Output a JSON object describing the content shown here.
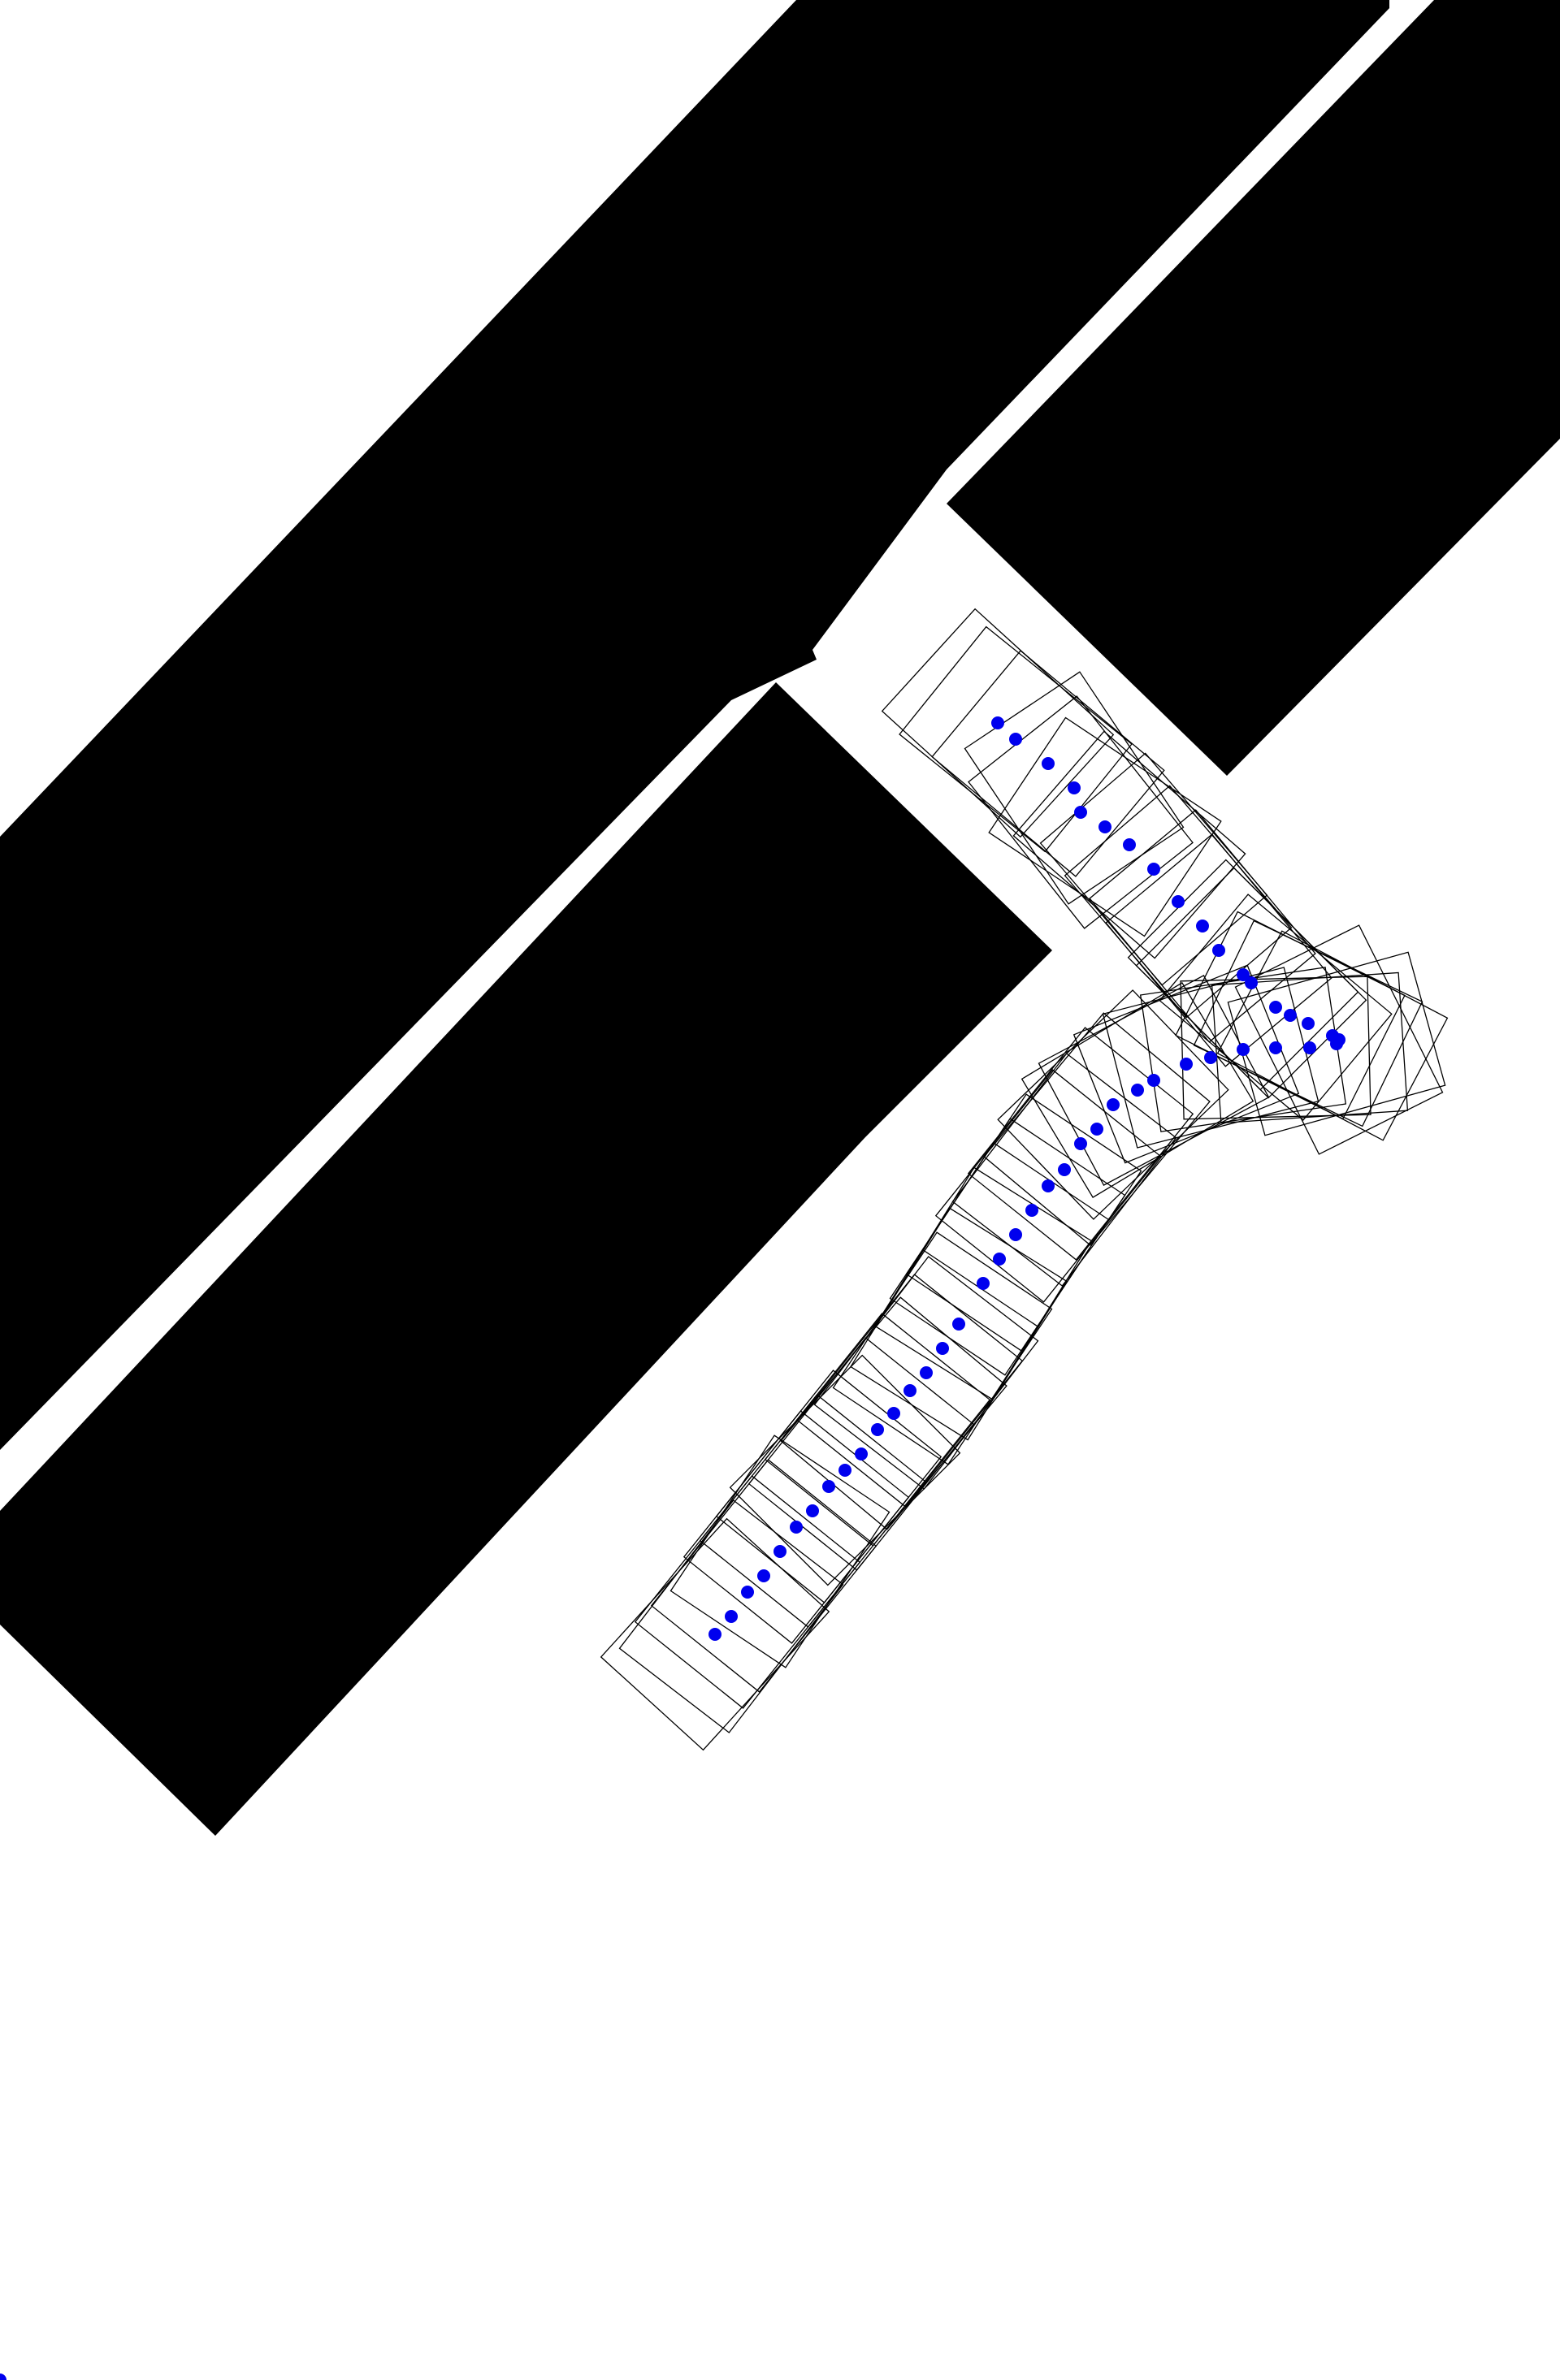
{
  "scene": {
    "obstacle_color": "#000000",
    "footprint_color": "#000000",
    "waypoint_color": "#0000ee",
    "background_color": "#ffffff"
  }
}
